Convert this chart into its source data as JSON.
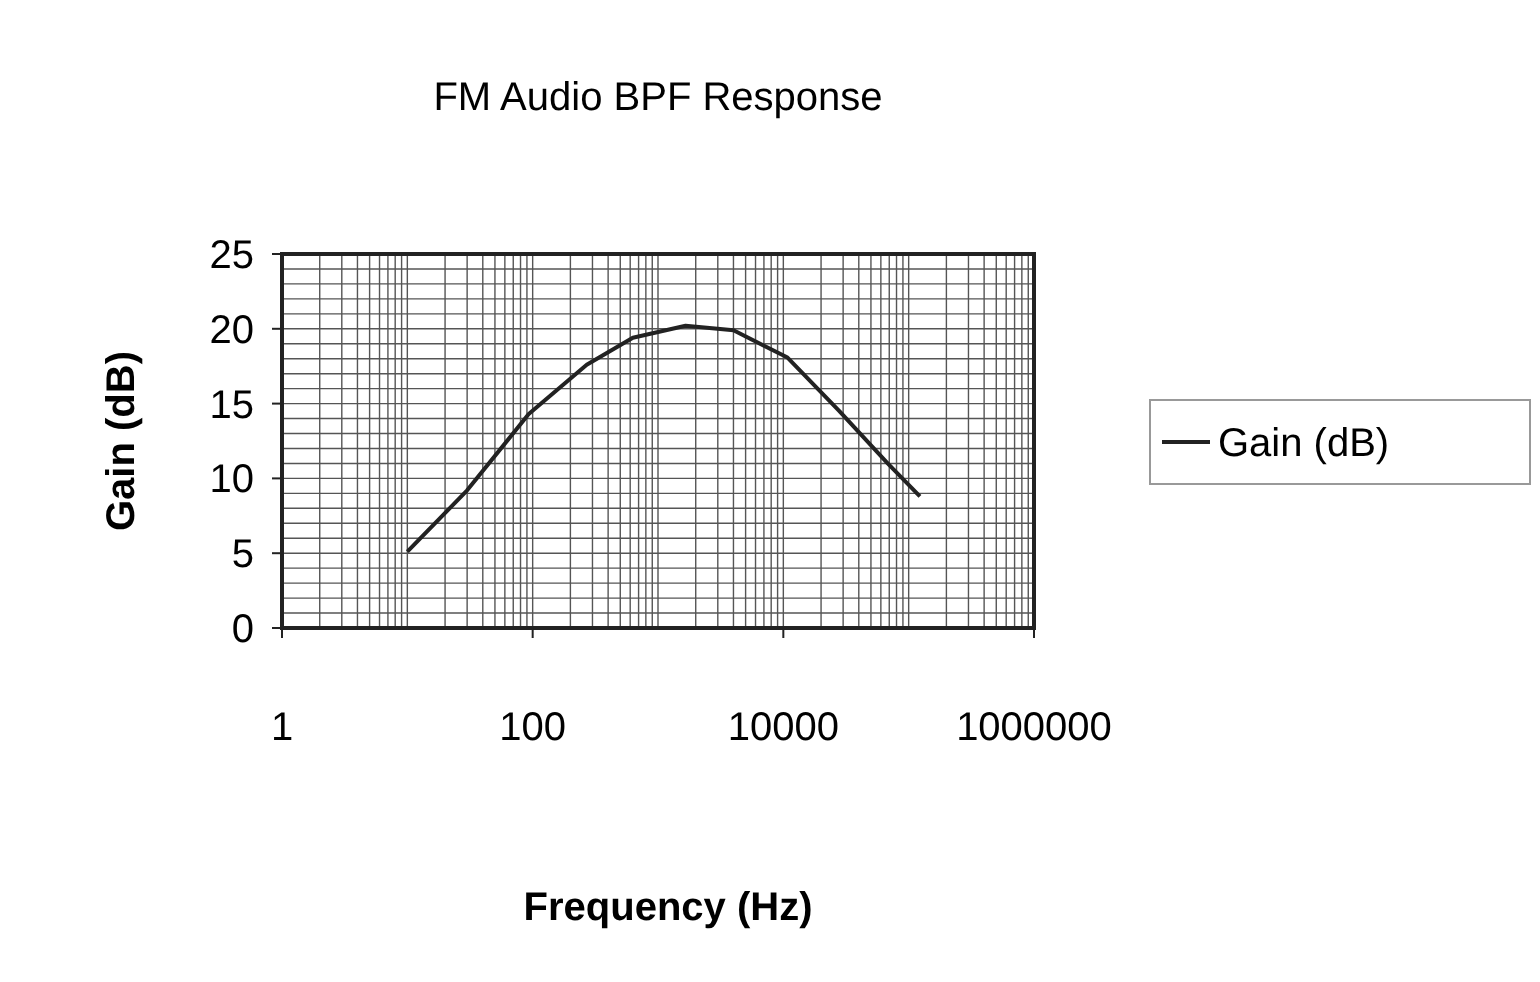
{
  "chart_data": {
    "type": "line",
    "title": "FM Audio BPF Response",
    "xlabel": "Frequency (Hz)",
    "ylabel": "Gain (dB)",
    "log": "x",
    "x": [
      10,
      30,
      93,
      270,
      630,
      1660,
      4000,
      10700,
      28000,
      68000,
      123000
    ],
    "series": [
      {
        "name": "Gain (dB)",
        "color": "#222222",
        "values": [
          5.1,
          9.2,
          14.3,
          17.6,
          19.4,
          20.2,
          19.9,
          18.1,
          14.5,
          11.0,
          8.8
        ]
      }
    ],
    "xlim": [
      1,
      1000000
    ],
    "xticks": [
      1,
      100,
      10000,
      1000000
    ],
    "ylim": [
      0,
      25
    ],
    "yticks": [
      0,
      5,
      10,
      15,
      20,
      25
    ],
    "grid": true,
    "legend": "right",
    "marker": "none",
    "line_style": "solid"
  }
}
